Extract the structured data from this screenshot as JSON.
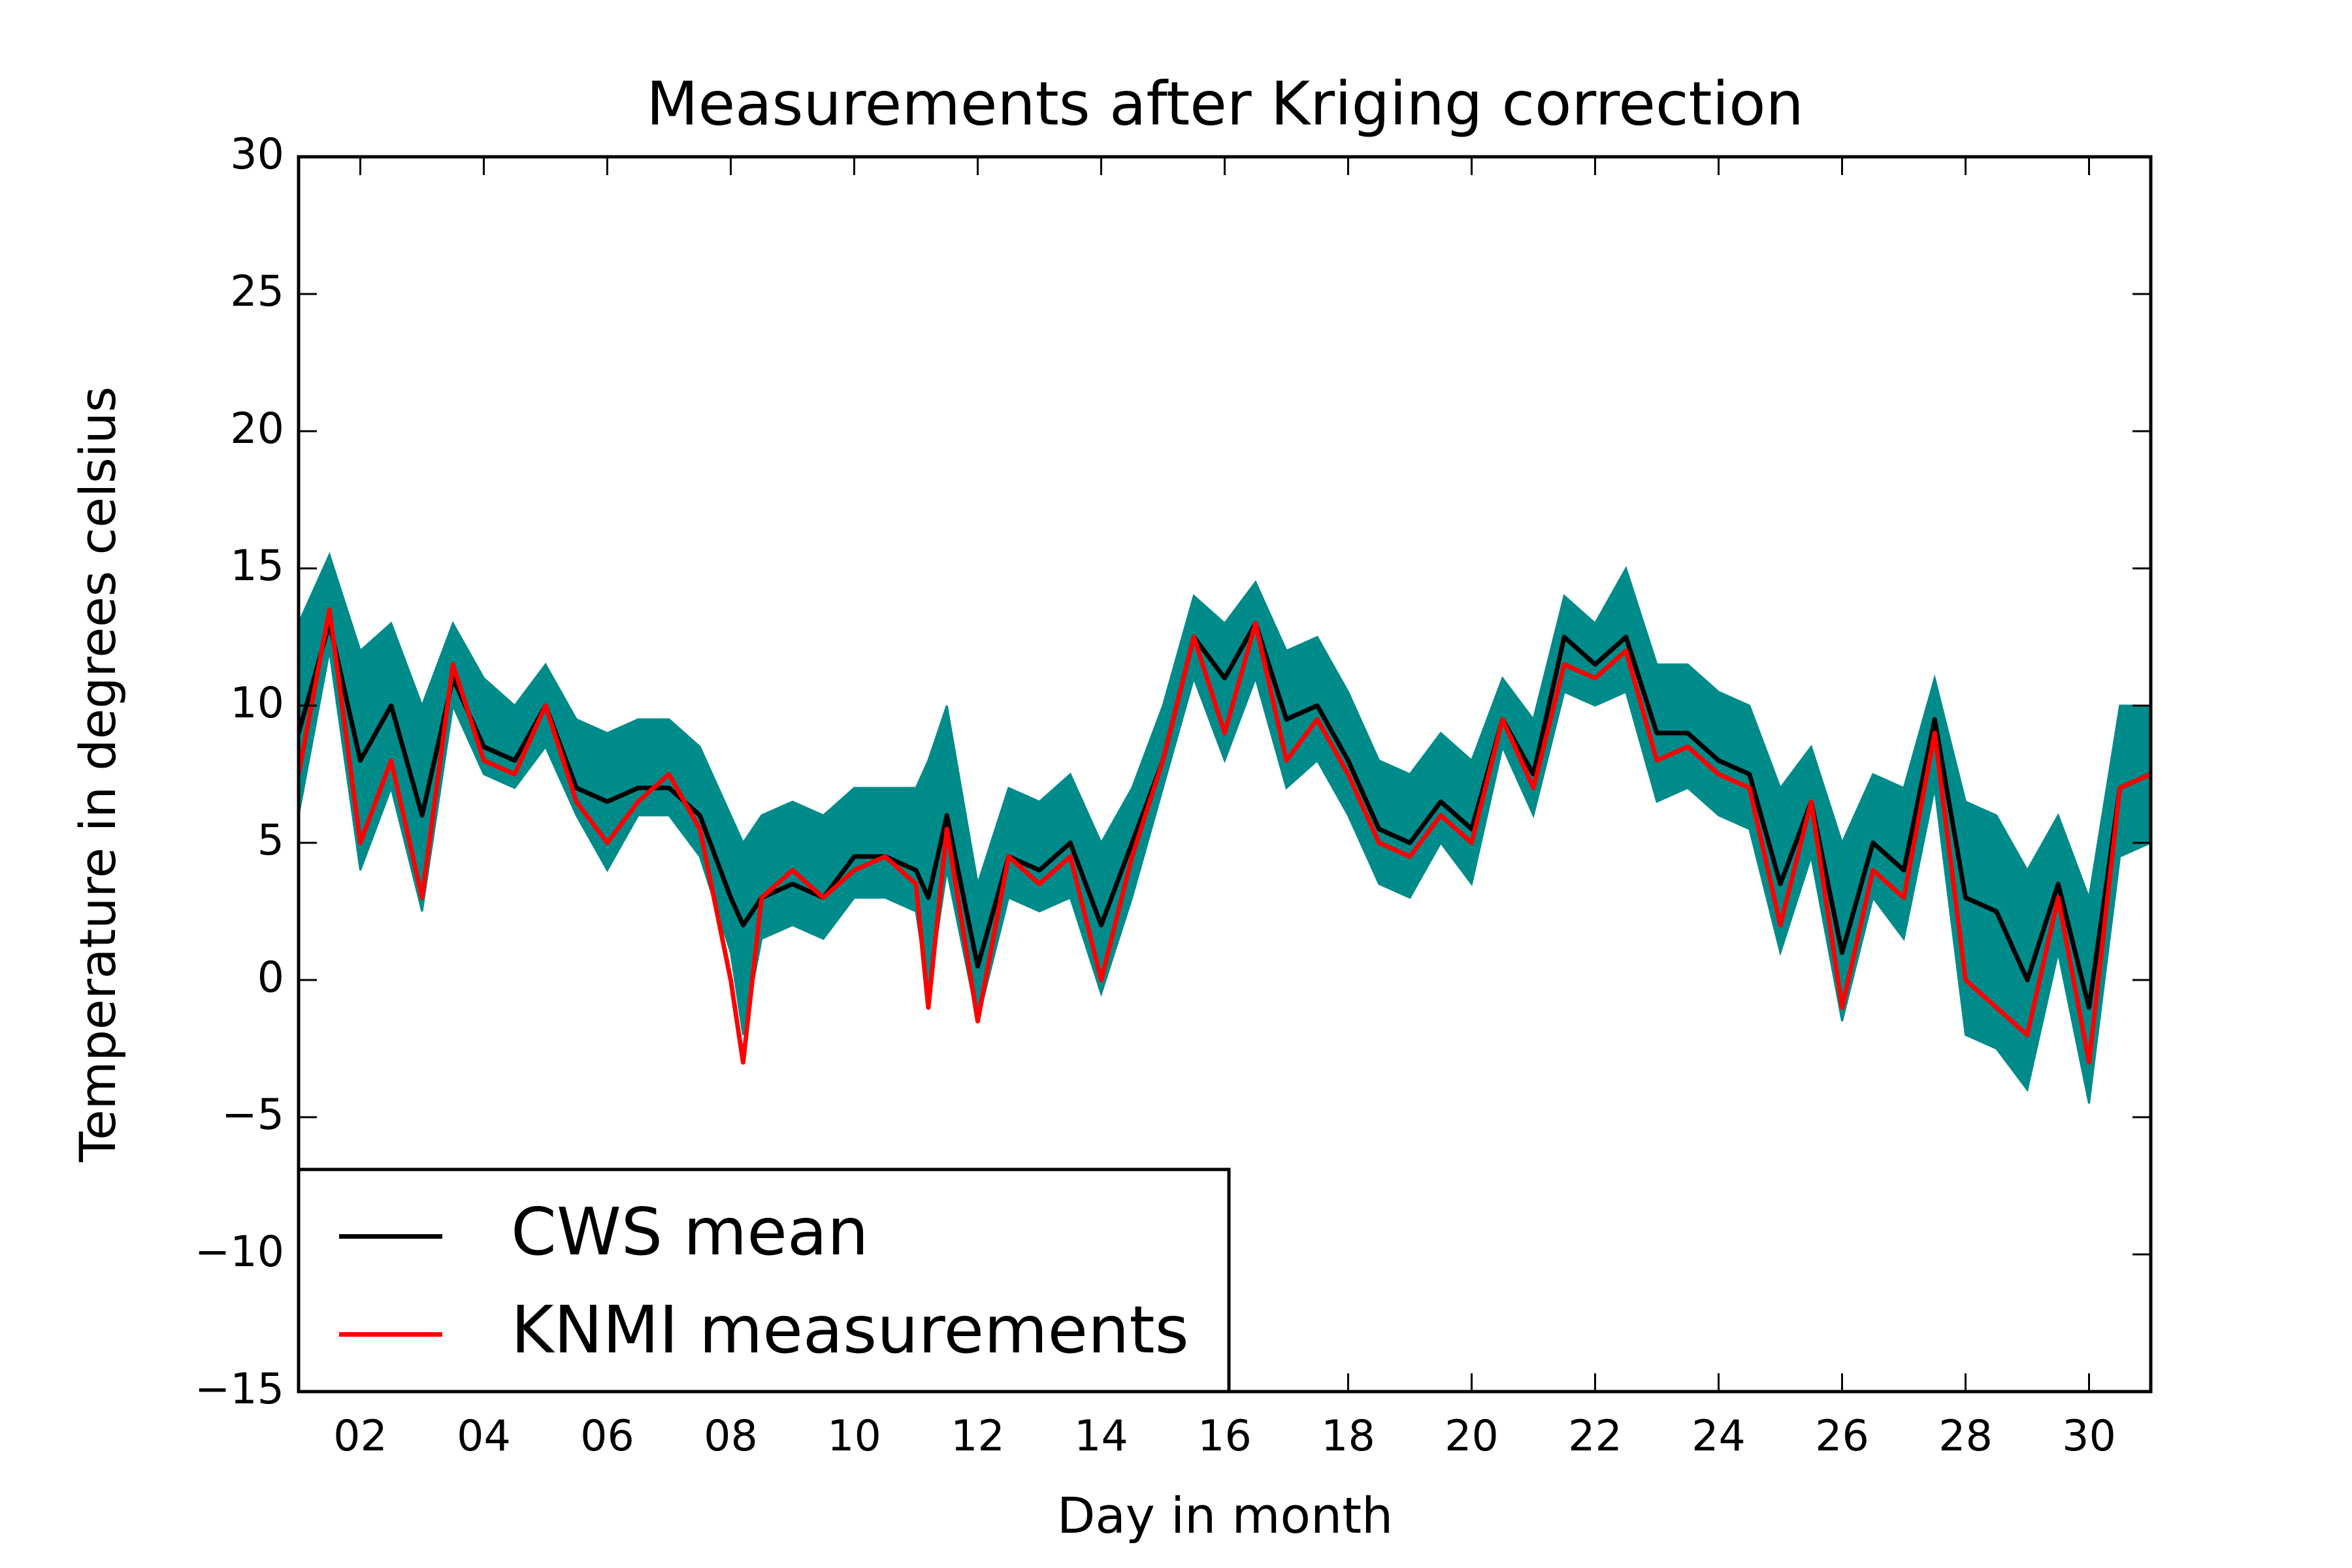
{
  "chart_data": {
    "type": "line",
    "title": "Measurements after Kriging correction",
    "x_label": "Day in month",
    "y_label": "Temperature in degrees celsius",
    "xlim": [
      1,
      31
    ],
    "ylim": [
      -15,
      30
    ],
    "xticks": [
      {
        "value": 2,
        "label": "02"
      },
      {
        "value": 4,
        "label": "04"
      },
      {
        "value": 6,
        "label": "06"
      },
      {
        "value": 8,
        "label": "08"
      },
      {
        "value": 10,
        "label": "10"
      },
      {
        "value": 12,
        "label": "12"
      },
      {
        "value": 14,
        "label": "14"
      },
      {
        "value": 16,
        "label": "16"
      },
      {
        "value": 18,
        "label": "18"
      },
      {
        "value": 20,
        "label": "20"
      },
      {
        "value": 22,
        "label": "22"
      },
      {
        "value": 24,
        "label": "24"
      },
      {
        "value": 26,
        "label": "26"
      },
      {
        "value": 28,
        "label": "28"
      },
      {
        "value": 30,
        "label": "30"
      }
    ],
    "yticks": [
      {
        "value": -15,
        "label": "−15"
      },
      {
        "value": -10,
        "label": "−10"
      },
      {
        "value": -5,
        "label": "−5"
      },
      0,
      5,
      10,
      15,
      20,
      25,
      30
    ],
    "grid": false,
    "legend": "lower left",
    "x": [
      1,
      1.5,
      2,
      2.5,
      3,
      3.5,
      4,
      4.5,
      5,
      5.5,
      6,
      6.5,
      7,
      7.5,
      8,
      8.2,
      8.5,
      9,
      9.5,
      10,
      10.5,
      11,
      11.2,
      11.5,
      12,
      12.5,
      13,
      13.5,
      14,
      14.5,
      15,
      15.5,
      16,
      16.5,
      17,
      17.5,
      18,
      18.5,
      19,
      19.5,
      20,
      20.5,
      21,
      21.5,
      22,
      22.5,
      23,
      23.5,
      24,
      24.5,
      25,
      25.5,
      26,
      26.5,
      27,
      27.5,
      28,
      28.5,
      29,
      29.5,
      30,
      30.5,
      31
    ],
    "band": {
      "color": "#008b8b",
      "upper": [
        13,
        15.5,
        12,
        13,
        10,
        13,
        11,
        10,
        11.5,
        9.5,
        9,
        9.5,
        9.5,
        8.5,
        6,
        5,
        6,
        6.5,
        6,
        7,
        7,
        7,
        8,
        10,
        3.5,
        7,
        6.5,
        7.5,
        5,
        7,
        10,
        14,
        13,
        14.5,
        12,
        12.5,
        10.5,
        8,
        7.5,
        9,
        8,
        11,
        9.5,
        14,
        13,
        15,
        11.5,
        11.5,
        10.5,
        10,
        7,
        8.5,
        5,
        7.5,
        7,
        11,
        6.5,
        6,
        4,
        6,
        3,
        10,
        10
      ],
      "lower": [
        6,
        12,
        4,
        7,
        2.5,
        10,
        7.5,
        7,
        8.5,
        6,
        4,
        6,
        6,
        4.5,
        1,
        -2,
        1.5,
        2,
        1.5,
        3,
        3,
        2.5,
        -0.5,
        4,
        -1.5,
        3,
        2.5,
        3,
        -0.5,
        3,
        7,
        11,
        8,
        11,
        7,
        8,
        6,
        3.5,
        3,
        5,
        3.5,
        8.5,
        6,
        10.5,
        10,
        10.5,
        6.5,
        7,
        6,
        5.5,
        1,
        4.5,
        -1.5,
        3,
        1.5,
        7,
        -2,
        -2.5,
        -4,
        1,
        -4.5,
        4.5,
        5
      ]
    },
    "series": [
      {
        "name": "CWS mean",
        "color": "#000000",
        "values": [
          9,
          13,
          8,
          10,
          6,
          11,
          8.5,
          8,
          10,
          7,
          6.5,
          7,
          7,
          6,
          3,
          2,
          3,
          3.5,
          3,
          4.5,
          4.5,
          4,
          3,
          6,
          0.5,
          4.5,
          4,
          5,
          2,
          5,
          8,
          12.5,
          11,
          13,
          9.5,
          10,
          8,
          5.5,
          5,
          6.5,
          5.5,
          9.5,
          7.5,
          12.5,
          11.5,
          12.5,
          9,
          9,
          8,
          7.5,
          3.5,
          6.5,
          1,
          5,
          4,
          9.5,
          3,
          2.5,
          0,
          3.5,
          -1,
          7,
          7.5
        ]
      },
      {
        "name": "KNMI measurements",
        "color": "#ff0000",
        "values": [
          7.5,
          13.5,
          5,
          8,
          3,
          11.5,
          8,
          7.5,
          10,
          6.5,
          5,
          6.5,
          7.5,
          5.5,
          0,
          -3,
          3,
          4,
          3,
          4,
          4.5,
          3.5,
          -1,
          5.5,
          -1.5,
          4.5,
          3.5,
          4.5,
          0,
          4.5,
          8,
          12.5,
          9,
          13,
          8,
          9.5,
          7.5,
          5,
          4.5,
          6,
          5,
          9.5,
          7,
          11.5,
          11,
          12,
          8,
          8.5,
          7.5,
          7,
          2,
          6.5,
          -1,
          4,
          3,
          9,
          0,
          -1,
          -2,
          3,
          -3,
          7,
          7.5
        ]
      }
    ]
  }
}
